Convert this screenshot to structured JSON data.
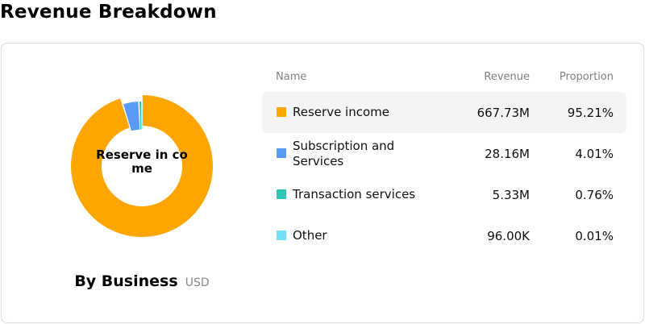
{
  "page": {
    "title": "Revenue Breakdown"
  },
  "chart_data": {
    "type": "pie",
    "donut": true,
    "center_label": "Reserve in come",
    "caption": "By Business",
    "unit": "USD",
    "headers": {
      "name": "Name",
      "revenue": "Revenue",
      "proportion": "Proportion"
    },
    "categories": [
      "Reserve income",
      "Subscription and Services",
      "Transaction services",
      "Other"
    ],
    "values": [
      667.73,
      28.16,
      5.33,
      0.096
    ],
    "value_unit": "M",
    "revenue_labels": [
      "667.73M",
      "28.16M",
      "5.33M",
      "96.00K"
    ],
    "proportions": [
      95.21,
      4.01,
      0.76,
      0.01
    ],
    "proportion_labels": [
      "95.21%",
      "4.01%",
      "0.76%",
      "0.01%"
    ],
    "colors": [
      "#FFA500",
      "#5B9BF8",
      "#2EC7B3",
      "#73E0F5"
    ],
    "highlighted_index": 0
  }
}
